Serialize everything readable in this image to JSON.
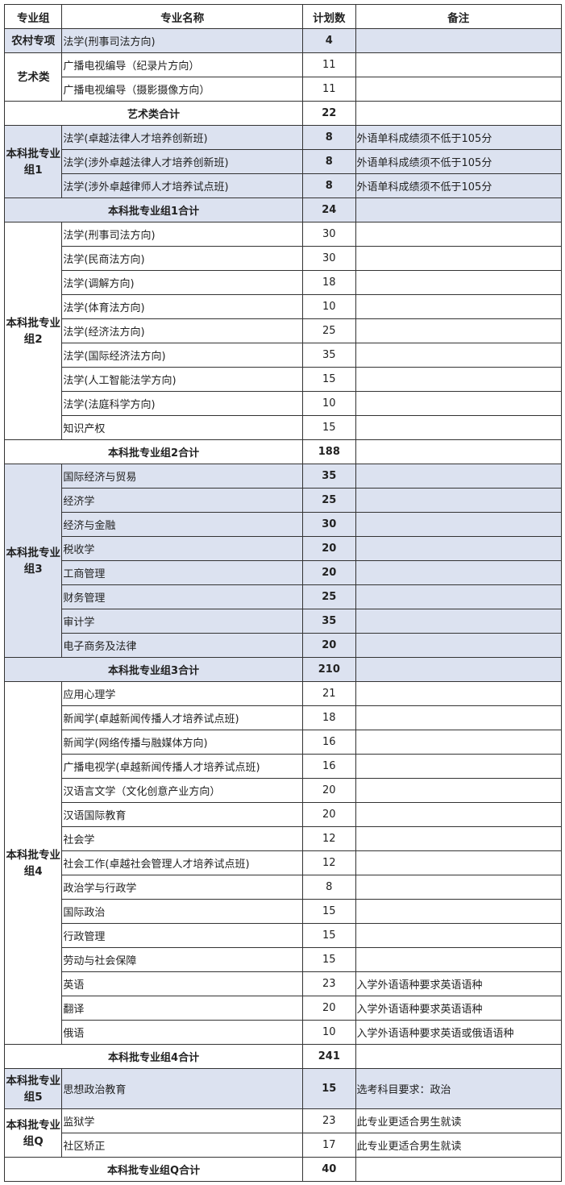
{
  "header": {
    "group": "专业组",
    "name": "专业名称",
    "count": "计划数",
    "note": "备注"
  },
  "colors": {
    "shade": "#dce2f0",
    "border": "#333333"
  },
  "groups": [
    {
      "label": "农村专项",
      "shaded": true,
      "rows": [
        {
          "name": "法学(刑事司法方向)",
          "count": "4",
          "note": ""
        }
      ]
    },
    {
      "label": "艺术类",
      "shaded": false,
      "rows": [
        {
          "name": "广播电视编导（纪录片方向）",
          "count": "11",
          "note": ""
        },
        {
          "name": "广播电视编导（摄影摄像方向）",
          "count": "11",
          "note": ""
        }
      ],
      "total": {
        "label": "艺术类合计",
        "count": "22",
        "shaded": false
      }
    },
    {
      "label": "本科批专业组1",
      "shaded": true,
      "rows": [
        {
          "name": "法学(卓越法律人才培养创新班)",
          "count": "8",
          "note": "外语单科成绩须不低于105分"
        },
        {
          "name": "法学(涉外卓越法律人才培养创新班)",
          "count": "8",
          "note": "外语单科成绩须不低于105分"
        },
        {
          "name": "法学(涉外卓越律师人才培养试点班)",
          "count": "8",
          "note": "外语单科成绩须不低于105分"
        }
      ],
      "total": {
        "label": "本科批专业组1合计",
        "count": "24",
        "shaded": true
      }
    },
    {
      "label": "本科批专业组2",
      "shaded": false,
      "rows": [
        {
          "name": "法学(刑事司法方向)",
          "count": "30",
          "note": ""
        },
        {
          "name": "法学(民商法方向)",
          "count": "30",
          "note": ""
        },
        {
          "name": "法学(调解方向)",
          "count": "18",
          "note": ""
        },
        {
          "name": "法学(体育法方向)",
          "count": "10",
          "note": ""
        },
        {
          "name": "法学(经济法方向)",
          "count": "25",
          "note": ""
        },
        {
          "name": "法学(国际经济法方向)",
          "count": "35",
          "note": ""
        },
        {
          "name": "法学(人工智能法学方向)",
          "count": "15",
          "note": ""
        },
        {
          "name": "法学(法庭科学方向)",
          "count": "10",
          "note": ""
        },
        {
          "name": "知识产权",
          "count": "15",
          "note": ""
        }
      ],
      "total": {
        "label": "本科批专业组2合计",
        "count": "188",
        "shaded": false
      }
    },
    {
      "label": "本科批专业组3",
      "shaded": true,
      "rows": [
        {
          "name": "国际经济与贸易",
          "count": "35",
          "note": ""
        },
        {
          "name": "经济学",
          "count": "25",
          "note": ""
        },
        {
          "name": "经济与金融",
          "count": "30",
          "note": ""
        },
        {
          "name": "税收学",
          "count": "20",
          "note": ""
        },
        {
          "name": "工商管理",
          "count": "20",
          "note": ""
        },
        {
          "name": "财务管理",
          "count": "25",
          "note": ""
        },
        {
          "name": "审计学",
          "count": "35",
          "note": ""
        },
        {
          "name": "电子商务及法律",
          "count": "20",
          "note": ""
        }
      ],
      "total": {
        "label": "本科批专业组3合计",
        "count": "210",
        "shaded": true
      }
    },
    {
      "label": "本科批专业组4",
      "shaded": false,
      "rows": [
        {
          "name": "应用心理学",
          "count": "21",
          "note": ""
        },
        {
          "name": "新闻学(卓越新闻传播人才培养试点班)",
          "count": "18",
          "note": ""
        },
        {
          "name": "新闻学(网络传播与融媒体方向)",
          "count": "16",
          "note": ""
        },
        {
          "name": "广播电视学(卓越新闻传播人才培养试点班)",
          "count": "16",
          "note": ""
        },
        {
          "name": "汉语言文学（文化创意产业方向）",
          "count": "20",
          "note": ""
        },
        {
          "name": "汉语国际教育",
          "count": "20",
          "note": ""
        },
        {
          "name": "社会学",
          "count": "12",
          "note": ""
        },
        {
          "name": "社会工作(卓越社会管理人才培养试点班)",
          "count": "12",
          "note": ""
        },
        {
          "name": "政治学与行政学",
          "count": "8",
          "note": ""
        },
        {
          "name": "国际政治",
          "count": "15",
          "note": ""
        },
        {
          "name": "行政管理",
          "count": "15",
          "note": ""
        },
        {
          "name": "劳动与社会保障",
          "count": "15",
          "note": ""
        },
        {
          "name": "英语",
          "count": "23",
          "note": "入学外语语种要求英语语种"
        },
        {
          "name": "翻译",
          "count": "20",
          "note": "入学外语语种要求英语语种"
        },
        {
          "name": "俄语",
          "count": "10",
          "note": "入学外语语种要求英语或俄语语种"
        }
      ],
      "total": {
        "label": "本科批专业组4合计",
        "count": "241",
        "shaded": false
      }
    },
    {
      "label": "本科批专业组5",
      "shaded": true,
      "tall": true,
      "rows": [
        {
          "name": "思想政治教育",
          "count": "15",
          "note": "选考科目要求：政治"
        }
      ]
    },
    {
      "label": "本科批专业组Q",
      "shaded": false,
      "rows": [
        {
          "name": "监狱学",
          "count": "23",
          "note": "此专业更适合男生就读"
        },
        {
          "name": "社区矫正",
          "count": "17",
          "note": "此专业更适合男生就读"
        }
      ],
      "total": {
        "label": "本科批专业组Q合计",
        "count": "40",
        "shaded": false
      }
    }
  ]
}
